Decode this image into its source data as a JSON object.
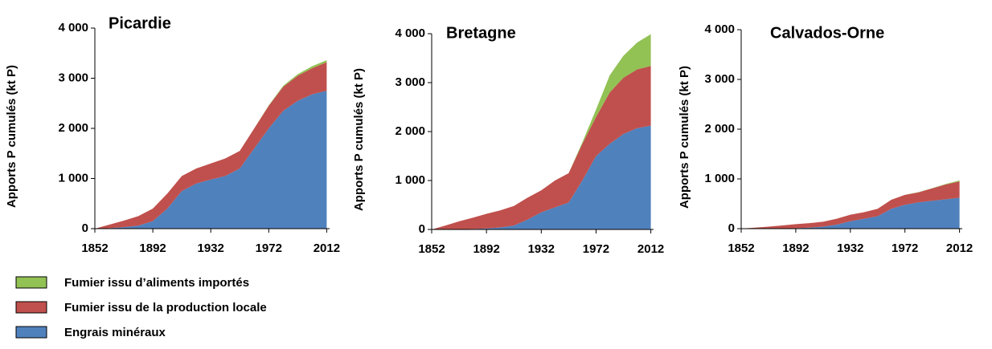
{
  "chart_data": [
    {
      "type": "stacked_area",
      "title": "Picardie",
      "ylabel": "Apports P cumulés (kt P)",
      "x": [
        1852,
        1862,
        1872,
        1882,
        1892,
        1902,
        1912,
        1922,
        1932,
        1942,
        1952,
        1962,
        1972,
        1982,
        1992,
        2002,
        2012
      ],
      "series": [
        {
          "name": "Fumier issu d’aliments importés",
          "color": "#92c154",
          "values": [
            0,
            0,
            0,
            0,
            0,
            0,
            0,
            0,
            0,
            0,
            0,
            0,
            10,
            20,
            30,
            40,
            40
          ]
        },
        {
          "name": "Fumier issu de la production locale",
          "color": "#c0504d",
          "values": [
            0,
            70,
            130,
            190,
            250,
            300,
            300,
            300,
            320,
            350,
            350,
            400,
            450,
            480,
            500,
            520,
            570
          ]
        },
        {
          "name": "Engrais minéraux",
          "color": "#4f81bd",
          "values": [
            0,
            10,
            30,
            60,
            150,
            400,
            750,
            900,
            980,
            1050,
            1200,
            1600,
            2000,
            2350,
            2550,
            2680,
            2750
          ]
        }
      ],
      "xlim": [
        1852,
        2014
      ],
      "xticks": [
        1852,
        1892,
        1932,
        1972,
        2012
      ],
      "ylim": [
        0,
        4000
      ],
      "yticks": [
        0,
        {
          "value": 1000,
          "label": "1 000"
        },
        {
          "value": 2000,
          "label": "2 000"
        },
        {
          "value": 3000,
          "label": "3 000"
        },
        {
          "value": 4000,
          "label": "4 000"
        }
      ]
    },
    {
      "type": "stacked_area",
      "title": "Bretagne",
      "ylabel": "Apports P cumulés (kt P)",
      "x": [
        1852,
        1862,
        1872,
        1882,
        1892,
        1902,
        1912,
        1922,
        1932,
        1942,
        1952,
        1962,
        1972,
        1982,
        1992,
        2002,
        2012
      ],
      "series": [
        {
          "color": "#92c154",
          "values": [
            0,
            0,
            0,
            0,
            0,
            0,
            0,
            0,
            0,
            0,
            0,
            30,
            150,
            350,
            450,
            550,
            650
          ]
        },
        {
          "color": "#c0504d",
          "values": [
            0,
            80,
            160,
            230,
            300,
            350,
            400,
            450,
            450,
            550,
            600,
            750,
            800,
            1050,
            1150,
            1200,
            1220
          ]
        },
        {
          "color": "#4f81bd",
          "values": [
            0,
            0,
            5,
            10,
            20,
            40,
            80,
            200,
            350,
            450,
            550,
            1000,
            1500,
            1750,
            1950,
            2070,
            2120
          ]
        }
      ],
      "xlim": [
        1852,
        2014
      ],
      "xticks": [
        1852,
        1892,
        1932,
        1972,
        2012
      ],
      "ylim": [
        0,
        4000
      ],
      "yticks": [
        0,
        {
          "value": 1000,
          "label": "1 000"
        },
        {
          "value": 2000,
          "label": "2 000"
        },
        {
          "value": 3000,
          "label": "3 000"
        },
        {
          "value": 4000,
          "label": "4 000"
        }
      ]
    },
    {
      "type": "stacked_area",
      "title": "Calvados-Orne",
      "ylabel": "Apports P cumulés (kt P)",
      "x": [
        1852,
        1862,
        1872,
        1882,
        1892,
        1902,
        1912,
        1922,
        1932,
        1942,
        1952,
        1962,
        1972,
        1982,
        1992,
        2002,
        2012
      ],
      "series": [
        {
          "color": "#92c154",
          "values": [
            0,
            0,
            0,
            0,
            0,
            0,
            0,
            0,
            0,
            0,
            0,
            0,
            0,
            5,
            5,
            10,
            20
          ]
        },
        {
          "color": "#c0504d",
          "values": [
            0,
            20,
            40,
            60,
            80,
            90,
            100,
            120,
            130,
            130,
            150,
            180,
            200,
            200,
            250,
            300,
            330
          ]
        },
        {
          "color": "#4f81bd",
          "values": [
            0,
            0,
            0,
            5,
            10,
            20,
            40,
            80,
            150,
            200,
            250,
            400,
            480,
            530,
            560,
            590,
            620
          ]
        }
      ],
      "xlim": [
        1852,
        2014
      ],
      "xticks": [
        1852,
        1892,
        1932,
        1972,
        2012
      ],
      "ylim": [
        0,
        4000
      ],
      "yticks": [
        0,
        {
          "value": 1000,
          "label": "1 000"
        },
        {
          "value": 2000,
          "label": "2 000"
        },
        {
          "value": 3000,
          "label": "3 000"
        },
        {
          "value": 4000,
          "label": "4 000"
        }
      ]
    }
  ]
}
